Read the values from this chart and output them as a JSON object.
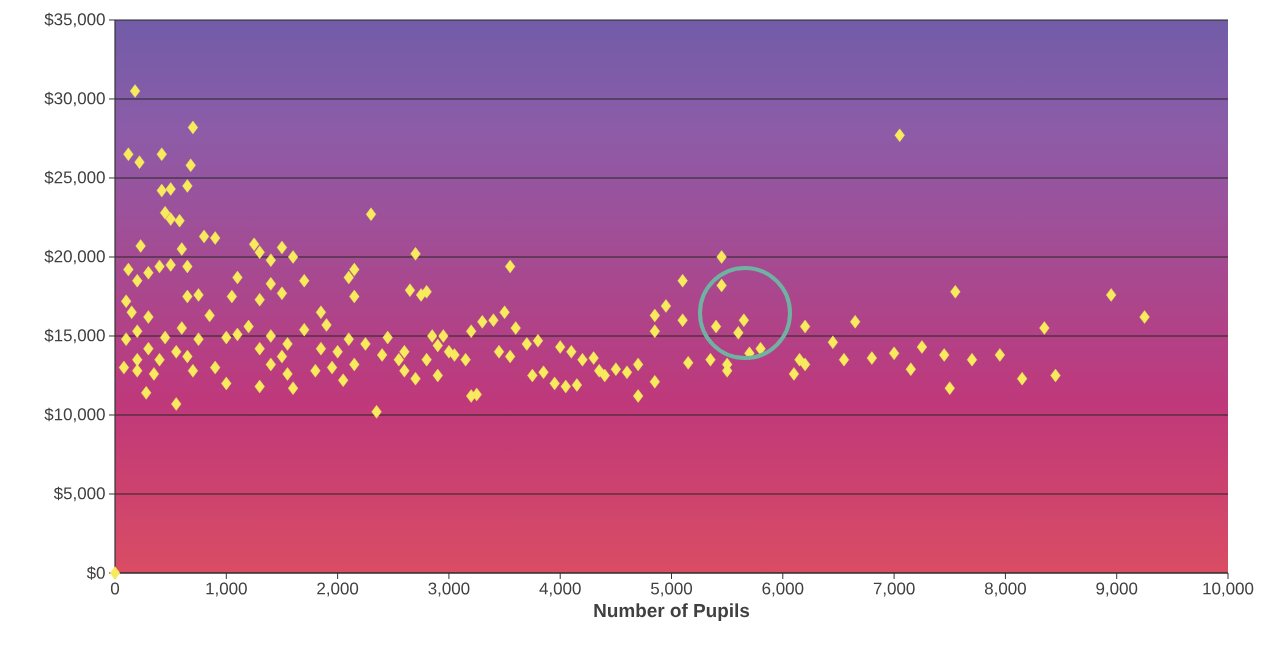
{
  "chart_data": {
    "type": "scatter",
    "xlabel": "Number of Pupils",
    "color": "#f7ea5c",
    "marker": "diamond",
    "grid": "y",
    "xlim": [
      0,
      10000
    ],
    "ylim": [
      0,
      35000
    ],
    "xticks": [
      0,
      {
        "value": 1000,
        "label": "1,000"
      },
      {
        "value": 2000,
        "label": "2,000"
      },
      {
        "value": 3000,
        "label": "3,000"
      },
      {
        "value": 4000,
        "label": "4,000"
      },
      {
        "value": 5000,
        "label": "5,000"
      },
      {
        "value": 6000,
        "label": "6,000"
      },
      {
        "value": 7000,
        "label": "7,000"
      },
      {
        "value": 8000,
        "label": "8,000"
      },
      {
        "value": 9000,
        "label": "9,000"
      },
      {
        "value": 10000,
        "label": "10,000"
      }
    ],
    "yticks": [
      {
        "value": 0,
        "label": "$0"
      },
      {
        "value": 5000,
        "label": "$5,000"
      },
      {
        "value": 10000,
        "label": "$10,000"
      },
      {
        "value": 15000,
        "label": "$15,000"
      },
      {
        "value": 20000,
        "label": "$20,000"
      },
      {
        "value": 25000,
        "label": "$25,000"
      },
      {
        "value": 30000,
        "label": "$30,000"
      },
      {
        "value": 35000,
        "label": "$35,000"
      }
    ],
    "x": [
      0,
      180,
      120,
      220,
      420,
      700,
      680,
      650,
      500,
      420,
      450,
      500,
      580,
      230,
      800,
      900,
      600,
      500,
      400,
      120,
      650,
      300,
      200,
      750,
      650,
      100,
      150,
      300,
      850,
      600,
      200,
      100,
      450,
      750,
      300,
      550,
      80,
      200,
      400,
      650,
      700,
      280,
      550,
      200,
      350,
      900,
      1000,
      1100,
      1050,
      1250,
      1300,
      1400,
      1500,
      1600,
      1400,
      1300,
      1500,
      1700,
      1200,
      1100,
      1000,
      1400,
      1550,
      1700,
      1850,
      1900,
      1300,
      1400,
      1550,
      1300,
      1600,
      1500,
      1800,
      1950,
      1850,
      2000,
      2100,
      2050,
      2150,
      2100,
      2150,
      2150,
      2300,
      2350,
      2250,
      2400,
      2450,
      2550,
      2600,
      2650,
      2700,
      2750,
      2800,
      2700,
      2600,
      2800,
      2850,
      2900,
      2950,
      2900,
      3000,
      3050,
      3150,
      3200,
      3300,
      3250,
      3200,
      3400,
      3500,
      3550,
      3450,
      3550,
      3600,
      3700,
      3800,
      3850,
      3750,
      3950,
      4000,
      4100,
      4050,
      4150,
      4200,
      4300,
      4350,
      4400,
      4500,
      4600,
      4700,
      4700,
      4850,
      4850,
      4850,
      4950,
      5100,
      5100,
      5150,
      5350,
      5400,
      5450,
      5450,
      5500,
      5500,
      5600,
      5650,
      5700,
      5800,
      6200,
      6150,
      6200,
      6100,
      6450,
      6550,
      6650,
      6800,
      7000,
      7050,
      7150,
      7250,
      7450,
      7500,
      7550,
      7700,
      7950,
      8150,
      8350,
      8450,
      8950,
      9250
    ],
    "values": [
      0,
      30500,
      26500,
      26000,
      26500,
      28200,
      25800,
      24500,
      24300,
      24200,
      22800,
      22400,
      22300,
      20700,
      21300,
      21200,
      20500,
      19500,
      19400,
      19200,
      19400,
      19000,
      18500,
      17600,
      17500,
      17200,
      16500,
      16200,
      16300,
      15500,
      15300,
      14800,
      14900,
      14800,
      14200,
      14000,
      13000,
      13500,
      13500,
      13700,
      12800,
      11400,
      10700,
      12800,
      12600,
      13000,
      12000,
      18700,
      17500,
      20800,
      20300,
      19800,
      20600,
      20000,
      18300,
      17300,
      17700,
      18500,
      15600,
      15100,
      14900,
      15000,
      14500,
      15400,
      16500,
      15700,
      14200,
      13200,
      12600,
      11800,
      11700,
      13700,
      12800,
      13000,
      14200,
      14000,
      14800,
      12200,
      13200,
      18700,
      19200,
      17500,
      22700,
      10200,
      14500,
      13800,
      14900,
      13500,
      14000,
      17900,
      20200,
      17600,
      17800,
      12300,
      12800,
      13500,
      15000,
      14400,
      15000,
      12500,
      14000,
      13800,
      13500,
      15300,
      15900,
      11300,
      11200,
      16000,
      16500,
      19400,
      14000,
      13700,
      15500,
      14500,
      14700,
      12700,
      12500,
      12000,
      14300,
      14000,
      11800,
      11900,
      13500,
      13600,
      12800,
      12500,
      12900,
      12700,
      13200,
      11200,
      12100,
      15300,
      16300,
      16900,
      18500,
      16000,
      13300,
      13500,
      15600,
      20000,
      18200,
      13200,
      12800,
      15200,
      16000,
      13900,
      14200,
      15600,
      13500,
      13200,
      12600,
      14600,
      13500,
      15900,
      13600,
      13900,
      27700,
      12900,
      14300,
      13800,
      11700,
      17800,
      13500,
      13800,
      12300,
      15500,
      12500,
      17600,
      16200
    ]
  }
}
